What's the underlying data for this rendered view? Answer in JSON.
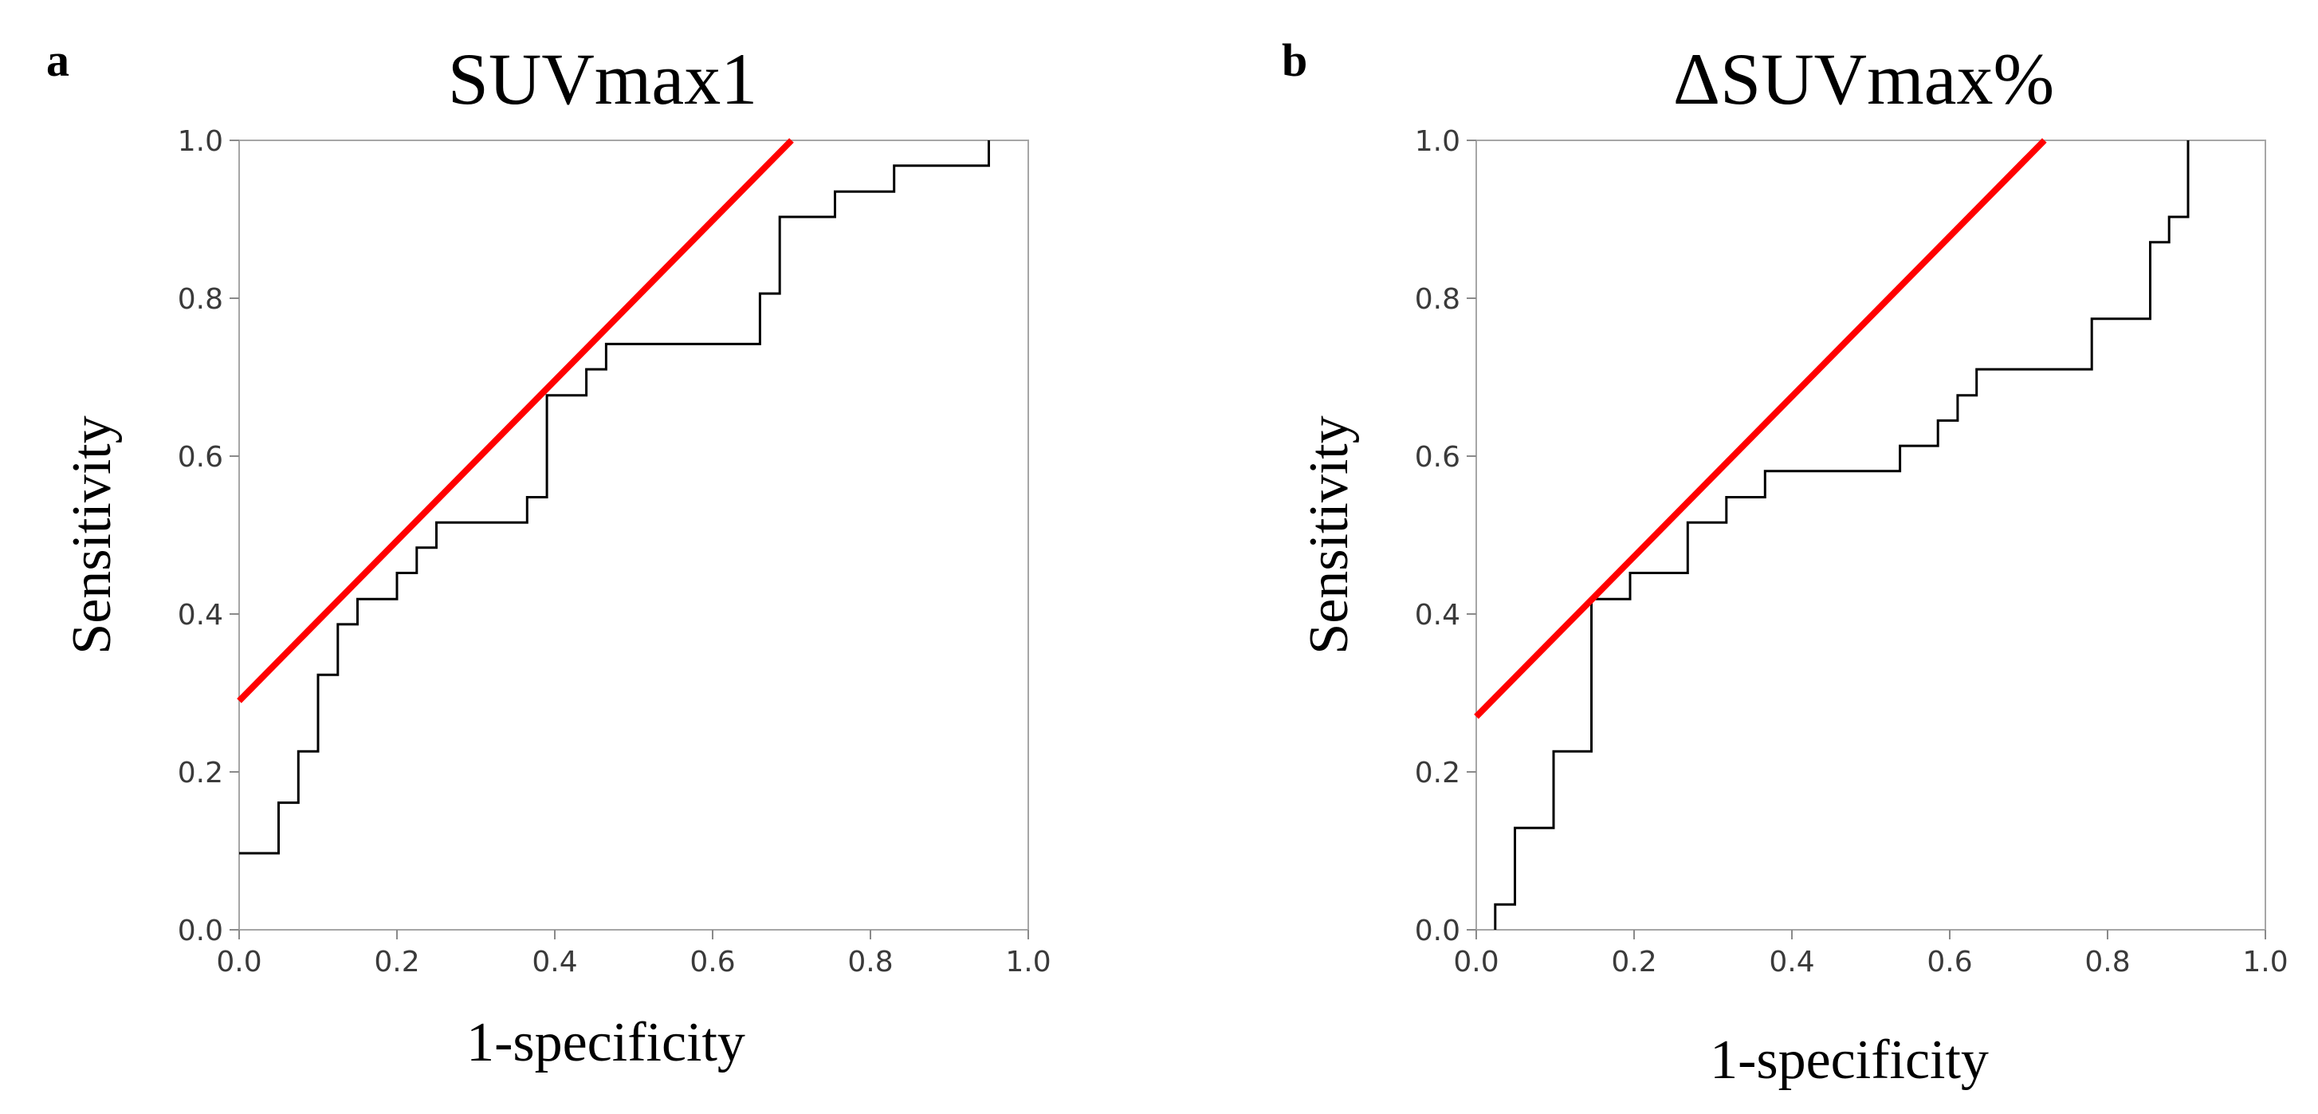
{
  "chart_data": [
    {
      "type": "line",
      "panel": "a",
      "title": "SUVmax1",
      "xlabel": "1-specificity",
      "ylabel": "Sensitivity",
      "xlim": [
        0,
        1
      ],
      "ylim": [
        0,
        1
      ],
      "x_ticks": [
        "0.0",
        "0.2",
        "0.4",
        "0.6",
        "0.8",
        "1.0"
      ],
      "y_ticks": [
        "0.0",
        "0.2",
        "0.4",
        "0.6",
        "0.8",
        "1.0"
      ],
      "series": [
        {
          "name": "ROC curve",
          "color": "#000000",
          "x": [
            0,
            0.05,
            0.05,
            0.075,
            0.075,
            0.1,
            0.1,
            0.125,
            0.125,
            0.15,
            0.15,
            0.2,
            0.2,
            0.225,
            0.225,
            0.25,
            0.25,
            0.365,
            0.365,
            0.39,
            0.39,
            0.44,
            0.44,
            0.465,
            0.465,
            0.66,
            0.66,
            0.685,
            0.685,
            0.755,
            0.755,
            0.83,
            0.83,
            0.95,
            0.95
          ],
          "y": [
            0.097,
            0.097,
            0.161,
            0.161,
            0.226,
            0.226,
            0.323,
            0.323,
            0.387,
            0.387,
            0.419,
            0.419,
            0.452,
            0.452,
            0.484,
            0.484,
            0.516,
            0.516,
            0.548,
            0.548,
            0.677,
            0.677,
            0.71,
            0.71,
            0.742,
            0.742,
            0.806,
            0.806,
            0.903,
            0.903,
            0.935,
            0.935,
            0.968,
            0.968,
            1.0
          ]
        },
        {
          "name": "Tangent line",
          "color": "#ff0000",
          "x": [
            0,
            0.7
          ],
          "y": [
            0.29,
            1.0
          ]
        }
      ]
    },
    {
      "type": "line",
      "panel": "b",
      "title": "ΔSUVmax%",
      "xlabel": "1-specificity",
      "ylabel": "Sensitivity",
      "xlim": [
        0,
        1
      ],
      "ylim": [
        0,
        1
      ],
      "x_ticks": [
        "0.0",
        "0.2",
        "0.4",
        "0.6",
        "0.8",
        "1.0"
      ],
      "y_ticks": [
        "0.0",
        "0.2",
        "0.4",
        "0.6",
        "0.8",
        "1.0"
      ],
      "series": [
        {
          "name": "ROC curve",
          "color": "#000000",
          "x": [
            0.024,
            0.024,
            0.049,
            0.049,
            0.098,
            0.098,
            0.146,
            0.146,
            0.195,
            0.195,
            0.268,
            0.268,
            0.317,
            0.317,
            0.366,
            0.366,
            0.537,
            0.537,
            0.585,
            0.585,
            0.61,
            0.61,
            0.634,
            0.634,
            0.78,
            0.78,
            0.854,
            0.854,
            0.878,
            0.878,
            0.902,
            0.902
          ],
          "y": [
            0.0,
            0.032,
            0.032,
            0.129,
            0.129,
            0.226,
            0.226,
            0.419,
            0.419,
            0.452,
            0.452,
            0.516,
            0.516,
            0.548,
            0.548,
            0.581,
            0.581,
            0.613,
            0.613,
            0.645,
            0.645,
            0.677,
            0.677,
            0.71,
            0.71,
            0.774,
            0.774,
            0.871,
            0.871,
            0.903,
            0.903,
            1.0
          ]
        },
        {
          "name": "Tangent line",
          "color": "#ff0000",
          "x": [
            0,
            0.72
          ],
          "y": [
            0.27,
            1.0
          ]
        }
      ]
    }
  ]
}
